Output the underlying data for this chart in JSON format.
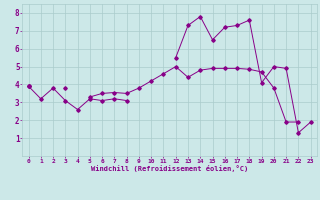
{
  "xlabel": "Windchill (Refroidissement éolien,°C)",
  "background_color": "#cce8e8",
  "grid_color": "#aacccc",
  "line_color": "#880088",
  "x_values": [
    0,
    1,
    2,
    3,
    4,
    5,
    6,
    7,
    8,
    9,
    10,
    11,
    12,
    13,
    14,
    15,
    16,
    17,
    18,
    19,
    20,
    21,
    22,
    23
  ],
  "line1": [
    3.9,
    3.2,
    3.8,
    3.1,
    2.6,
    3.2,
    3.1,
    3.2,
    3.1,
    null,
    null,
    null,
    null,
    null,
    null,
    null,
    null,
    null,
    null,
    null,
    null,
    null,
    null,
    null
  ],
  "line2": [
    3.9,
    null,
    null,
    3.8,
    null,
    3.3,
    3.5,
    3.55,
    3.5,
    3.8,
    4.2,
    4.6,
    5.0,
    4.4,
    4.8,
    4.9,
    4.9,
    4.9,
    4.85,
    4.7,
    3.8,
    1.9,
    1.9,
    null
  ],
  "line3": [
    3.9,
    null,
    null,
    null,
    null,
    null,
    null,
    null,
    null,
    null,
    null,
    null,
    5.5,
    7.3,
    7.8,
    6.5,
    7.2,
    7.3,
    7.6,
    4.1,
    5.0,
    4.9,
    1.3,
    1.9
  ],
  "ylim": [
    0,
    8.5
  ],
  "xlim": [
    -0.5,
    23.5
  ],
  "yticks": [
    1,
    2,
    3,
    4,
    5,
    6,
    7,
    8
  ],
  "xticks": [
    0,
    1,
    2,
    3,
    4,
    5,
    6,
    7,
    8,
    9,
    10,
    11,
    12,
    13,
    14,
    15,
    16,
    17,
    18,
    19,
    20,
    21,
    22,
    23
  ]
}
